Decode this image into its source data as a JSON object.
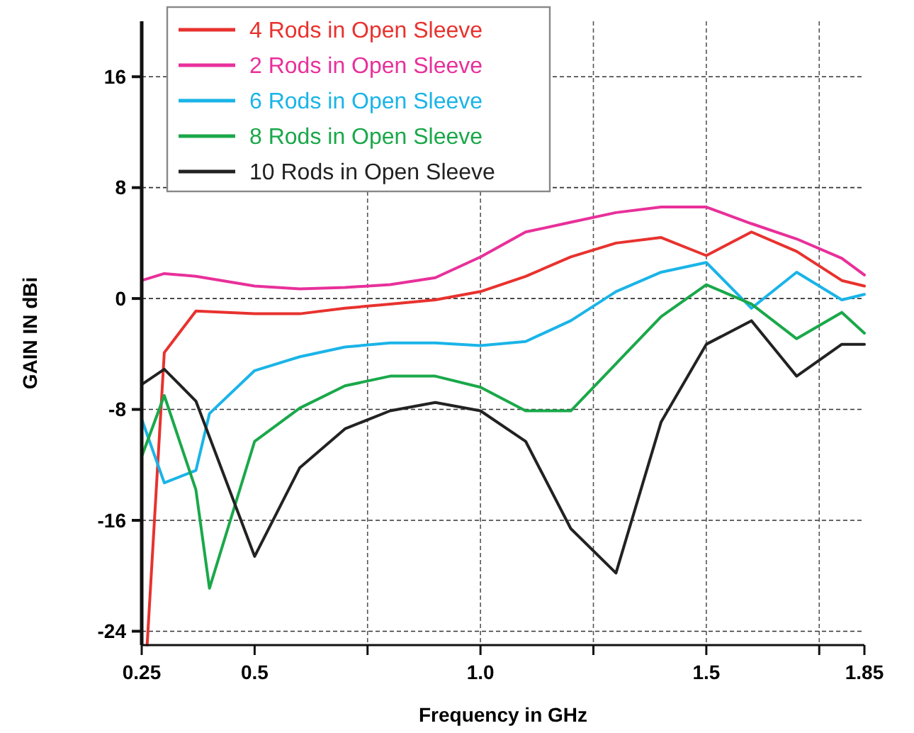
{
  "chart_data": {
    "type": "line",
    "xlabel": "Frequency in GHz",
    "ylabel": "GAIN IN dBi",
    "xlim": [
      0.25,
      1.85
    ],
    "ylim": [
      -25,
      20
    ],
    "xticks": [
      0.25,
      0.5,
      {
        "value": 0.75,
        "label": null
      },
      {
        "value": 1,
        "label": "1.0"
      },
      {
        "value": 1.25,
        "label": null
      },
      1.5,
      {
        "value": 1.75,
        "label": null
      },
      1.85
    ],
    "yticks": [
      -24,
      -16,
      -8,
      0,
      8,
      16
    ],
    "grid": true,
    "legend": "top",
    "line_style": "solid",
    "series": [
      {
        "name": "4 Rods in Open Sleeve",
        "color": "#e8322e",
        "x": [
          0.262,
          0.3,
          0.37,
          0.5,
          0.6,
          0.7,
          0.8,
          0.9,
          1.0,
          1.1,
          1.2,
          1.3,
          1.4,
          1.5,
          1.6,
          1.7,
          1.8,
          1.85
        ],
        "values": [
          -25,
          -3.9,
          -0.9,
          -1.1,
          -1.1,
          -0.7,
          -0.4,
          -0.1,
          0.5,
          1.6,
          3.0,
          4.0,
          4.4,
          3.1,
          4.8,
          3.4,
          1.3,
          0.9
        ]
      },
      {
        "name": "2 Rods in Open Sleeve",
        "color": "#e8309a",
        "x": [
          0.25,
          0.3,
          0.37,
          0.5,
          0.6,
          0.7,
          0.8,
          0.9,
          1.0,
          1.1,
          1.2,
          1.3,
          1.4,
          1.5,
          1.6,
          1.7,
          1.8,
          1.85
        ],
        "values": [
          1.3,
          1.8,
          1.6,
          0.9,
          0.7,
          0.8,
          1.0,
          1.5,
          3.0,
          4.8,
          5.5,
          6.2,
          6.6,
          6.6,
          5.4,
          4.3,
          2.9,
          1.7
        ]
      },
      {
        "name": "6 Rods in Open Sleeve",
        "color": "#1ab4e8",
        "x": [
          0.25,
          0.3,
          0.37,
          0.4,
          0.5,
          0.6,
          0.7,
          0.8,
          0.9,
          1.0,
          1.1,
          1.2,
          1.3,
          1.4,
          1.5,
          1.6,
          1.7,
          1.8,
          1.85
        ],
        "values": [
          -8.7,
          -13.3,
          -12.4,
          -8.3,
          -5.2,
          -4.2,
          -3.5,
          -3.2,
          -3.2,
          -3.4,
          -3.1,
          -1.6,
          0.5,
          1.9,
          2.6,
          -0.7,
          1.9,
          -0.1,
          0.3
        ]
      },
      {
        "name": "8 Rods in Open Sleeve",
        "color": "#1aa84a",
        "x": [
          0.25,
          0.3,
          0.37,
          0.4,
          0.5,
          0.6,
          0.7,
          0.8,
          0.9,
          1.0,
          1.1,
          1.2,
          1.3,
          1.4,
          1.5,
          1.6,
          1.7,
          1.8,
          1.85
        ],
        "values": [
          -11.4,
          -7.0,
          -13.8,
          -20.9,
          -10.3,
          -7.9,
          -6.3,
          -5.6,
          -5.6,
          -6.4,
          -8.1,
          -8.1,
          -4.7,
          -1.3,
          1.0,
          -0.4,
          -2.9,
          -1.0,
          -2.5
        ]
      },
      {
        "name": "10 Rods in Open Sleeve",
        "color": "#222222",
        "x": [
          0.25,
          0.3,
          0.37,
          0.5,
          0.6,
          0.7,
          0.8,
          0.9,
          1.0,
          1.1,
          1.2,
          1.3,
          1.4,
          1.5,
          1.6,
          1.7,
          1.8,
          1.85
        ],
        "values": [
          -6.2,
          -5.1,
          -7.4,
          -18.6,
          -12.2,
          -9.4,
          -8.1,
          -7.5,
          -8.1,
          -10.3,
          -16.6,
          -19.8,
          -8.9,
          -3.3,
          -1.6,
          -5.6,
          -3.3,
          -3.3
        ]
      }
    ]
  }
}
